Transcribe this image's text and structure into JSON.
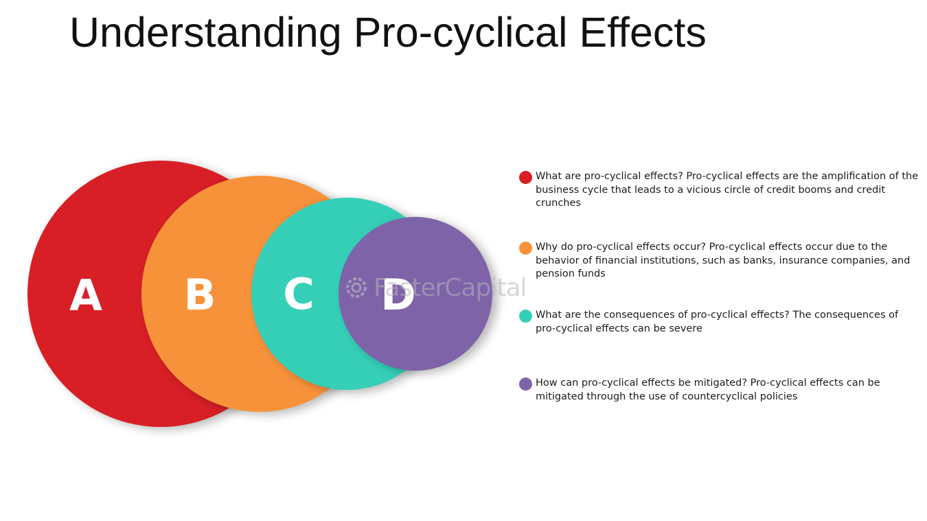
{
  "title": "Understanding Pro-cyclical Effects",
  "colors": {
    "a": "#d81f26",
    "b": "#f7923a",
    "c": "#35cfb8",
    "d": "#7e63a8"
  },
  "circles": [
    {
      "letter": "A",
      "color": "#d81f26"
    },
    {
      "letter": "B",
      "color": "#f7923a"
    },
    {
      "letter": "C",
      "color": "#35cfb8"
    },
    {
      "letter": "D",
      "color": "#7e63a8"
    }
  ],
  "watermark": "FasterCapital",
  "legend": [
    {
      "color": "#d81f26",
      "text": "What are pro-cyclical effects? Pro-cyclical effects are the amplification of the business cycle that leads to a vicious circle of credit booms and credit crunches"
    },
    {
      "color": "#f7923a",
      "text": "Why do pro-cyclical effects occur? Pro-cyclical effects occur due to the behavior of financial institutions, such as banks, insurance companies, and pension funds"
    },
    {
      "color": "#35cfb8",
      "text": "What are the consequences of pro-cyclical effects? The consequences of pro-cyclical effects can be severe"
    },
    {
      "color": "#7e63a8",
      "text": "How can pro-cyclical effects be mitigated? Pro-cyclical effects can be mitigated through the use of countercyclical policies"
    }
  ]
}
